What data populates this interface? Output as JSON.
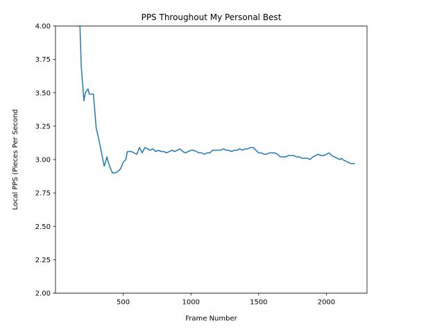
{
  "chart_data": {
    "type": "line",
    "title": "PPS Throughout My Personal Best",
    "xlabel": "Frame Number",
    "ylabel": "Local PPS (Pieces Per Second",
    "xlim": [
      0,
      2300
    ],
    "ylim": [
      2.0,
      4.0
    ],
    "x_ticks": [
      500,
      1000,
      1500,
      2000
    ],
    "x_tick_labels": [
      "500",
      "1000",
      "1500",
      "2000"
    ],
    "y_ticks": [
      2.0,
      2.25,
      2.5,
      2.75,
      3.0,
      3.25,
      3.5,
      3.75,
      4.0
    ],
    "y_tick_labels": [
      "2.00",
      "2.25",
      "2.50",
      "2.75",
      "3.00",
      "3.25",
      "3.50",
      "3.75",
      "4.00"
    ],
    "grid": false,
    "legend": "none",
    "series": [
      {
        "color": "#1f77b4",
        "x": [
          180,
          190,
          210,
          220,
          240,
          250,
          260,
          280,
          300,
          320,
          340,
          360,
          380,
          390,
          400,
          420,
          440,
          460,
          480,
          500,
          520,
          530,
          540,
          560,
          580,
          600,
          620,
          640,
          660,
          680,
          700,
          720,
          740,
          760,
          780,
          800,
          820,
          840,
          860,
          880,
          900,
          920,
          940,
          960,
          980,
          1000,
          1020,
          1040,
          1060,
          1080,
          1100,
          1120,
          1140,
          1160,
          1180,
          1200,
          1220,
          1240,
          1260,
          1280,
          1300,
          1320,
          1340,
          1360,
          1380,
          1400,
          1420,
          1440,
          1460,
          1480,
          1500,
          1520,
          1540,
          1560,
          1580,
          1600,
          1620,
          1640,
          1660,
          1680,
          1700,
          1720,
          1740,
          1760,
          1780,
          1800,
          1820,
          1840,
          1860,
          1880,
          1900,
          1920,
          1940,
          1960,
          1980,
          2000,
          2020,
          2040,
          2060,
          2080,
          2100,
          2110,
          2120,
          2140,
          2160,
          2180,
          2200,
          2210
        ],
        "values": [
          4.02,
          3.7,
          3.44,
          3.5,
          3.53,
          3.49,
          3.49,
          3.49,
          3.24,
          3.15,
          3.05,
          2.95,
          3.02,
          2.98,
          2.95,
          2.9,
          2.9,
          2.91,
          2.93,
          2.98,
          3.0,
          3.06,
          3.06,
          3.06,
          3.05,
          3.04,
          3.09,
          3.05,
          3.09,
          3.08,
          3.07,
          3.08,
          3.06,
          3.07,
          3.06,
          3.06,
          3.05,
          3.06,
          3.07,
          3.06,
          3.07,
          3.08,
          3.06,
          3.05,
          3.06,
          3.07,
          3.07,
          3.06,
          3.05,
          3.05,
          3.04,
          3.05,
          3.05,
          3.07,
          3.07,
          3.07,
          3.07,
          3.08,
          3.07,
          3.07,
          3.06,
          3.07,
          3.07,
          3.08,
          3.07,
          3.08,
          3.08,
          3.09,
          3.09,
          3.07,
          3.05,
          3.05,
          3.04,
          3.04,
          3.05,
          3.05,
          3.05,
          3.04,
          3.02,
          3.02,
          3.02,
          3.03,
          3.03,
          3.03,
          3.02,
          3.02,
          3.01,
          3.01,
          3.01,
          3.0,
          3.02,
          3.03,
          3.04,
          3.03,
          3.03,
          3.04,
          3.05,
          3.03,
          3.02,
          3.01,
          3.0,
          3.01,
          3.0,
          2.99,
          2.98,
          2.97,
          2.97,
          2.97
        ]
      }
    ]
  }
}
